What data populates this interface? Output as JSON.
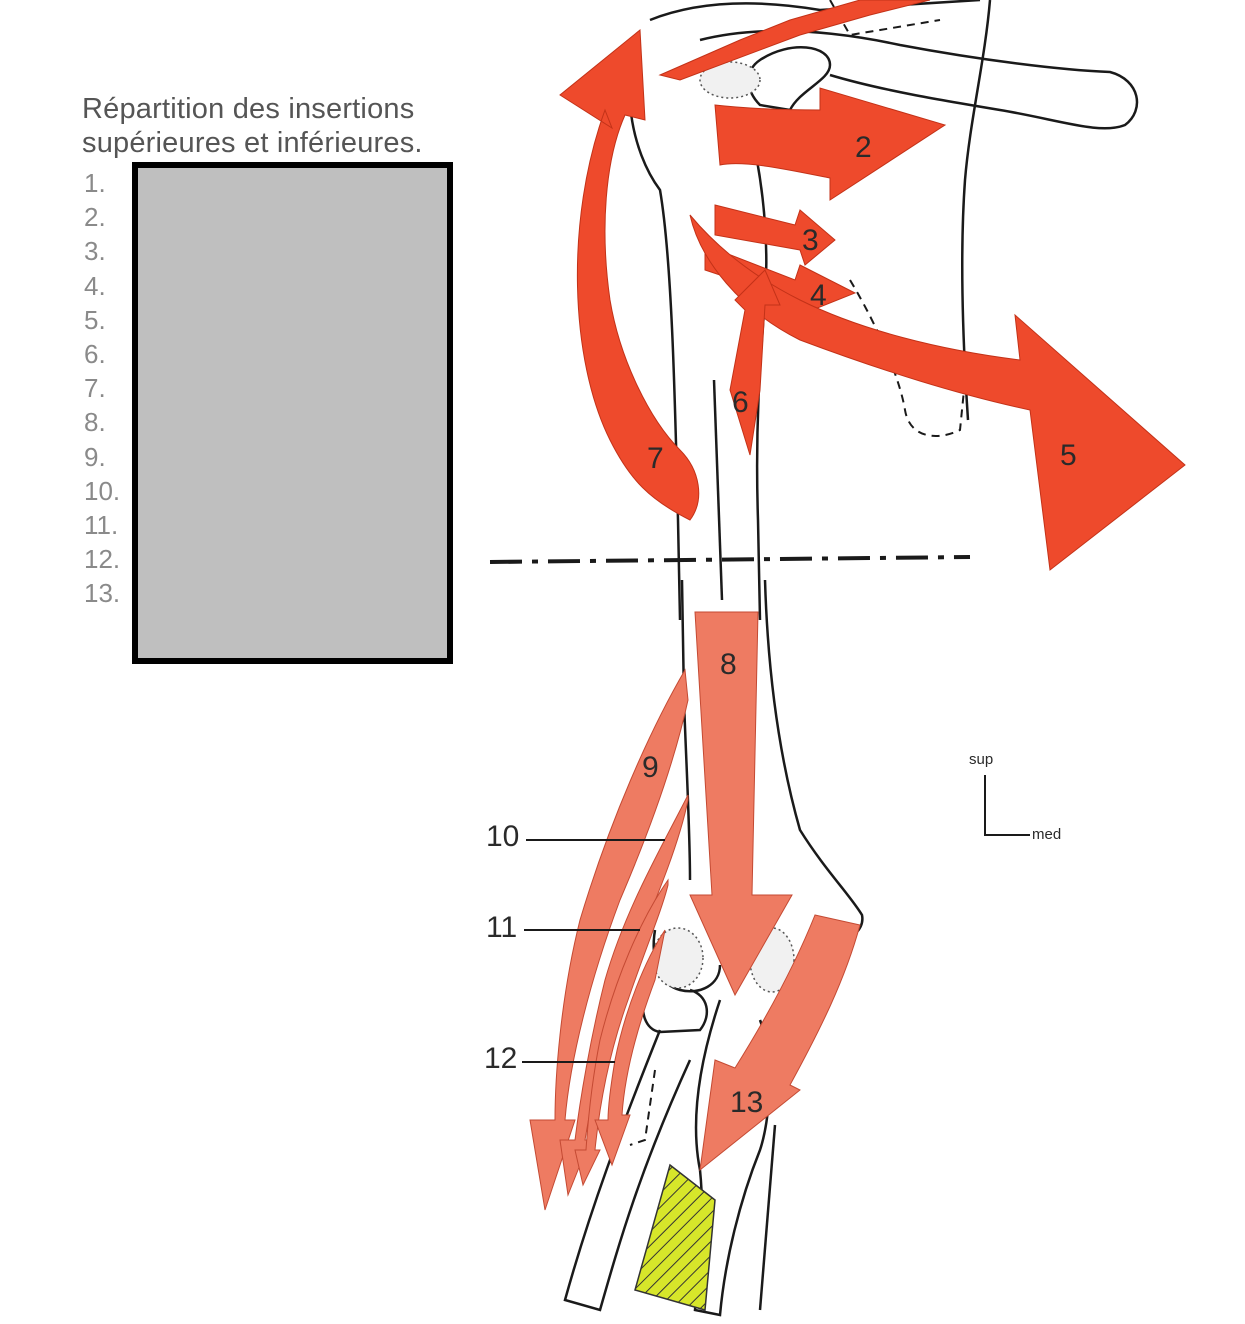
{
  "caption": {
    "line1": "Répartition des insertions",
    "line2": "supérieures et inférieures."
  },
  "legend_numbers": [
    "1.",
    "2.",
    "3.",
    "4.",
    "5.",
    "6.",
    "7.",
    "8.",
    "9.",
    "10.",
    "11.",
    "12.",
    "13."
  ],
  "figure_labels": {
    "m2": "2",
    "m3": "3",
    "m4": "4",
    "m5": "5",
    "m6": "6",
    "m7": "7",
    "m8": "8",
    "m9": "9",
    "m10": "10",
    "m11": "11",
    "m12": "12",
    "m13": "13"
  },
  "orientation": {
    "sup": "sup",
    "med": "med"
  },
  "colors": {
    "muscle_upper": "#ee4a2c",
    "muscle_lower": "#ee7b62",
    "bone_outline": "#1a1a1a",
    "tendon_yellow": "#d7e62a",
    "answer_box_fill": "#bfbfbf"
  }
}
